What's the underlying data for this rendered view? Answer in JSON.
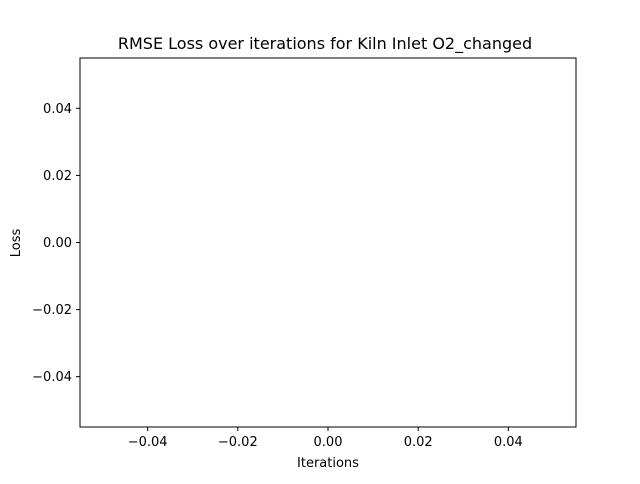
{
  "chart_data": {
    "type": "line",
    "title": "RMSE Loss over iterations for Kiln Inlet O2_changed",
    "xlabel": "Iterations",
    "ylabel": "Loss",
    "xlim": [
      -0.055,
      0.055
    ],
    "ylim": [
      -0.055,
      0.055
    ],
    "x_ticks": [
      -0.04,
      -0.02,
      0.0,
      0.02,
      0.04
    ],
    "y_ticks": [
      -0.04,
      -0.02,
      0.0,
      0.02,
      0.04
    ],
    "x_tick_labels": [
      "−0.04",
      "−0.02",
      "0.00",
      "0.02",
      "0.04"
    ],
    "y_tick_labels": [
      "−0.04",
      "−0.02",
      "0.00",
      "0.02",
      "0.04"
    ],
    "grid": false,
    "series": [
      {
        "values": []
      }
    ]
  }
}
